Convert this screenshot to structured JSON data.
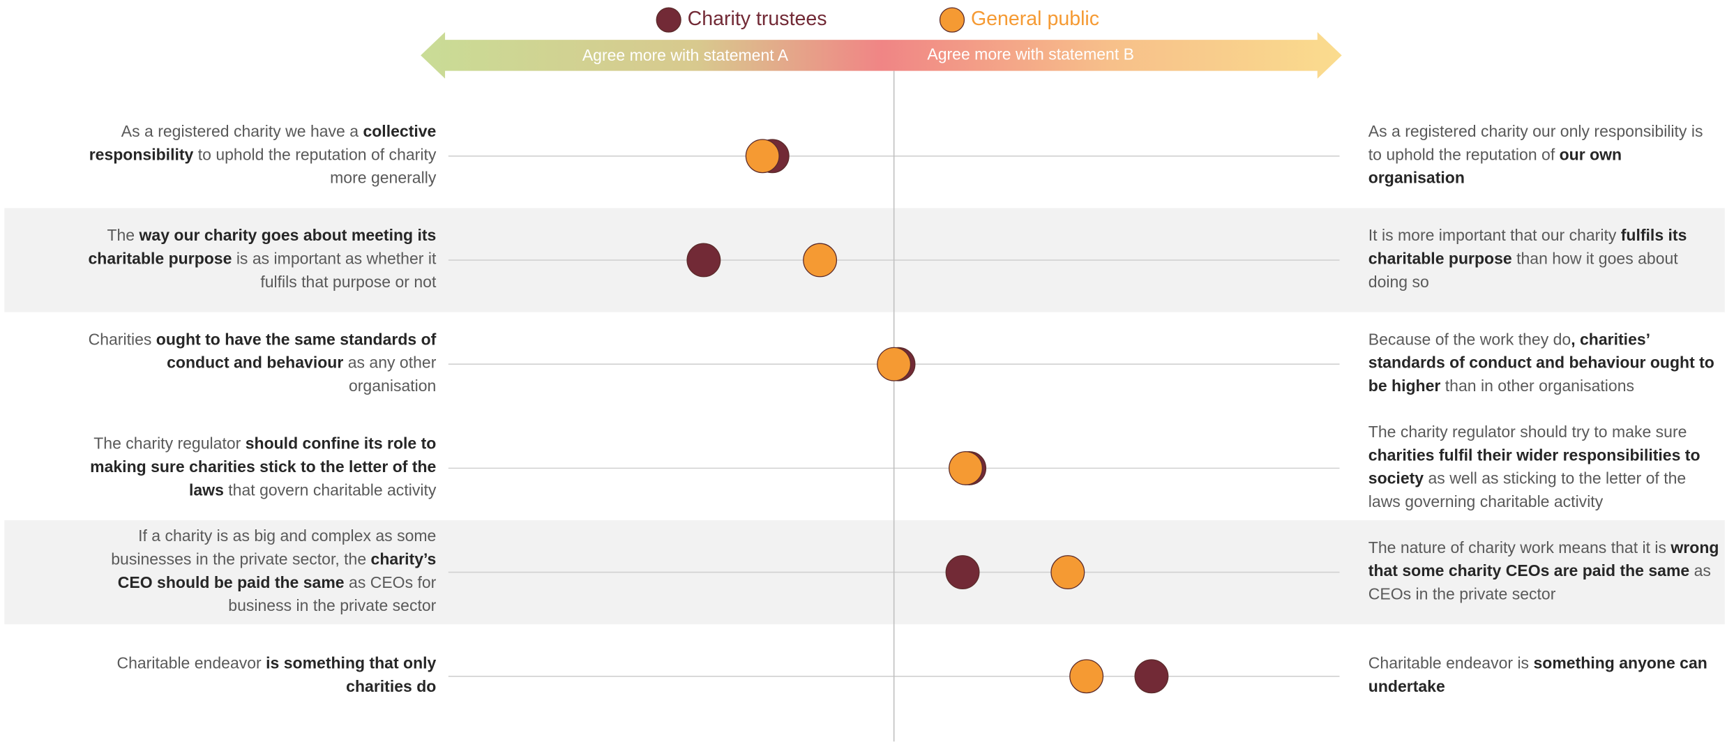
{
  "chart_data": {
    "type": "dot",
    "arrow_labels": [
      "Agree more with statement A",
      "Agree more with statement B"
    ],
    "xlim": [
      -100,
      100
    ],
    "categories": [
      {
        "statement_a": [
          {
            "text": "As a registered charity we have a ",
            "bold": false
          },
          {
            "text": "collective responsibility",
            "bold": true
          },
          {
            "text": " to uphold the reputation of charity more generally",
            "bold": false
          }
        ],
        "statement_b": [
          {
            "text": "As a registered charity our only responsibility is to uphold the reputation of ",
            "bold": false
          },
          {
            "text": "our own organisation",
            "bold": true
          }
        ]
      },
      {
        "statement_a": [
          {
            "text": "The ",
            "bold": false
          },
          {
            "text": "way our charity goes about meeting its charitable purpose",
            "bold": true
          },
          {
            "text": " is as important as whether it fulfils that purpose or not",
            "bold": false
          }
        ],
        "statement_b": [
          {
            "text": "It is more important that our charity ",
            "bold": false
          },
          {
            "text": "fulfils its charitable purpose",
            "bold": true
          },
          {
            "text": " than how it goes about doing so",
            "bold": false
          }
        ]
      },
      {
        "statement_a": [
          {
            "text": "Charities ",
            "bold": false
          },
          {
            "text": "ought to have the same standards of conduct and behaviour",
            "bold": true
          },
          {
            "text": " as any other organisation",
            "bold": false
          }
        ],
        "statement_b": [
          {
            "text": "Because of the work they do",
            "bold": false
          },
          {
            "text": ", charities’ standards of conduct and behaviour ought to be higher",
            "bold": true
          },
          {
            "text": " than in other organisations",
            "bold": false
          }
        ]
      },
      {
        "statement_a": [
          {
            "text": "The charity regulator ",
            "bold": false
          },
          {
            "text": "should confine its role to making sure charities stick to the letter of the laws",
            "bold": true
          },
          {
            "text": " that govern charitable activity",
            "bold": false
          }
        ],
        "statement_b": [
          {
            "text": "The charity regulator should try to make sure ",
            "bold": false
          },
          {
            "text": "charities fulfil their wider responsibilities to society",
            "bold": true
          },
          {
            "text": " as well as sticking to the letter of the laws governing charitable activity",
            "bold": false
          }
        ]
      },
      {
        "statement_a": [
          {
            "text": "If a charity is as big and complex as some businesses in the private sector, the ",
            "bold": false
          },
          {
            "text": "charity’s CEO should be paid the same",
            "bold": true
          },
          {
            "text": " as CEOs for business in the private sector",
            "bold": false
          }
        ],
        "statement_b": [
          {
            "text": "The nature of charity work means that it is ",
            "bold": false
          },
          {
            "text": "wrong that some charity CEOs are paid the same",
            "bold": true
          },
          {
            "text": " as CEOs in the private sector",
            "bold": false
          }
        ]
      },
      {
        "statement_a": [
          {
            "text": "Charitable endeavor ",
            "bold": false
          },
          {
            "text": "is something that only charities do",
            "bold": true
          }
        ],
        "statement_b": [
          {
            "text": "Charitable endeavor is ",
            "bold": false
          },
          {
            "text": "something anyone can undertake",
            "bold": true
          }
        ]
      }
    ],
    "series": [
      {
        "name": "Charity trustees",
        "color": "#722a36",
        "values": [
          -27.3,
          -42.7,
          1,
          16.9,
          15.4,
          57.8
        ]
      },
      {
        "name": "General public",
        "color": "#f59a33",
        "values": [
          -29.5,
          -16.6,
          0,
          16.1,
          39,
          43.2
        ]
      }
    ]
  }
}
